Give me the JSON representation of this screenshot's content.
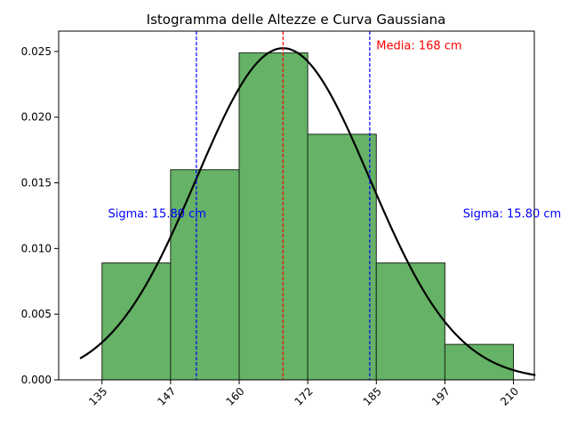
{
  "chart_data": {
    "type": "bar",
    "title": "Istogramma delle Altezze e Curva Gaussiana",
    "xlabel": "",
    "ylabel": "",
    "bins": [
      {
        "start": 135,
        "end": 147.5,
        "density": 0.0089
      },
      {
        "start": 147.5,
        "end": 160,
        "density": 0.016
      },
      {
        "start": 160,
        "end": 172.5,
        "density": 0.0249
      },
      {
        "start": 172.5,
        "end": 185,
        "density": 0.0187
      },
      {
        "start": 185,
        "end": 197.5,
        "density": 0.0089
      },
      {
        "start": 197.5,
        "end": 210,
        "density": 0.0027
      }
    ],
    "xticks": [
      135,
      147.5,
      160,
      172.5,
      185,
      197.5,
      210
    ],
    "xtick_labels": [
      "135",
      "147",
      "160",
      "172",
      "185",
      "197",
      "210"
    ],
    "yticks": [
      0,
      0.005,
      0.01,
      0.015,
      0.02,
      0.025
    ],
    "ytick_labels": [
      "0.000",
      "0.005",
      "0.010",
      "0.015",
      "0.020",
      "0.025"
    ],
    "xlim": [
      127.1,
      213.8
    ],
    "ylim": [
      0,
      0.02655
    ],
    "gaussian": {
      "mean": 168,
      "sigma": 15.8,
      "x_range": [
        131,
        214
      ]
    },
    "vlines": [
      {
        "x": 168,
        "color": "#ff0000"
      },
      {
        "x": 152.2,
        "color": "#0000ff"
      },
      {
        "x": 183.8,
        "color": "#0000ff"
      }
    ],
    "annotations": [
      {
        "text": "Media: 168 cm",
        "x": 185,
        "y": 0.0255,
        "color": "#ff0000"
      },
      {
        "text": "Sigma: 15.80 cm",
        "x": 136.1,
        "y": 0.0127,
        "color": "#0000ff"
      },
      {
        "text": "Sigma: 15.80 cm",
        "x": 200.8,
        "y": 0.0127,
        "color": "#0000ff"
      }
    ],
    "bar_color": "#66b266",
    "bar_edge_color": "#1a2b1a",
    "curve_color": "#000000",
    "grid": false,
    "legend": "none"
  }
}
